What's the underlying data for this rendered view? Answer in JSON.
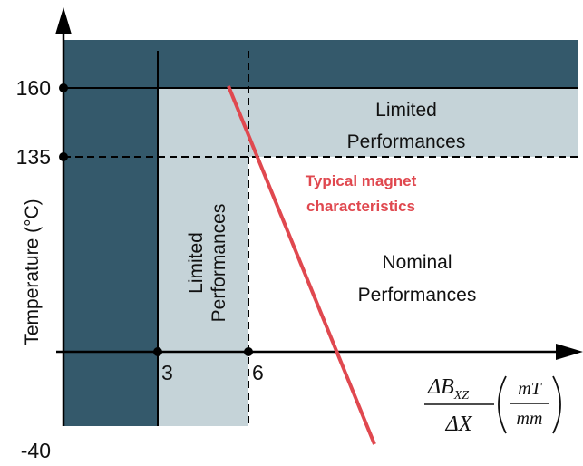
{
  "colors": {
    "dark_region": "#34596b",
    "light_region": "#c5d3d8",
    "magnet_line": "#e0484f",
    "axis": "#000000"
  },
  "y_axis": {
    "label": "Temperature (°C)",
    "ticks": [
      "160",
      "135",
      "-40"
    ]
  },
  "x_axis": {
    "ticks": [
      "3",
      "6"
    ],
    "label": {
      "delta_b": "ΔB",
      "b_subscript": "XZ",
      "delta_x": "ΔX",
      "unit_num": "mT",
      "unit_den": "mm"
    }
  },
  "regions": {
    "limited_top": [
      "Limited",
      "Performances"
    ],
    "limited_side": [
      "Limited",
      "Performances"
    ],
    "nominal": [
      "Nominal",
      "Performances"
    ]
  },
  "magnet": {
    "label": [
      "Typical magnet",
      "characteristics"
    ]
  }
}
